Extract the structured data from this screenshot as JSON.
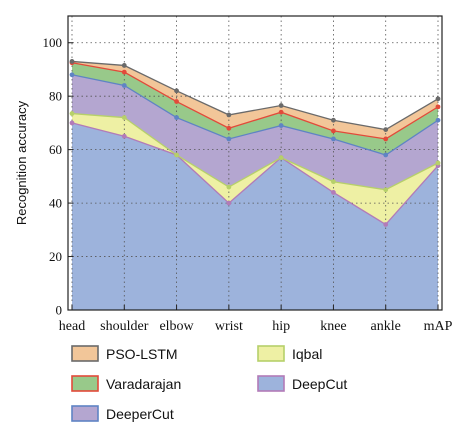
{
  "chart_data": {
    "type": "area",
    "categories": [
      "head",
      "shoulder",
      "elbow",
      "wrist",
      "hip",
      "knee",
      "ankle",
      "mAP"
    ],
    "ylabel": "Recognition accuracy",
    "xlabel": "",
    "ylim": [
      0,
      110
    ],
    "yticks": [
      "0",
      "20",
      "40",
      "60",
      "80",
      "100"
    ],
    "grid": true,
    "legend_placement": "bottom",
    "series": [
      {
        "name": "DeepCut",
        "values": [
          70,
          65,
          58,
          40,
          57,
          44,
          32,
          54
        ],
        "color": "#9db3dc",
        "line": "#b27bb8"
      },
      {
        "name": "Iqbal",
        "values": [
          73.5,
          72,
          58,
          46,
          57,
          48,
          45,
          55
        ],
        "color": "#eef0a4",
        "line": "#b6d06a"
      },
      {
        "name": "DeeperCut",
        "values": [
          88,
          84,
          72,
          64,
          69,
          64,
          58,
          71
        ],
        "color": "#b4a6d0",
        "line": "#5f84c4"
      },
      {
        "name": "Varadarajan",
        "values": [
          92.5,
          89,
          78,
          68,
          74,
          67,
          64,
          76
        ],
        "color": "#98c98a",
        "line": "#e24a3a"
      },
      {
        "name": "PSO-LSTM",
        "values": [
          93,
          91.5,
          82,
          73,
          76.5,
          71,
          67.5,
          79
        ],
        "color": "#f2c699",
        "line": "#6a6a6a"
      }
    ],
    "legend_order": [
      "PSO-LSTM",
      "Iqbal",
      "Varadarajan",
      "DeepCut",
      "DeeperCut"
    ]
  }
}
